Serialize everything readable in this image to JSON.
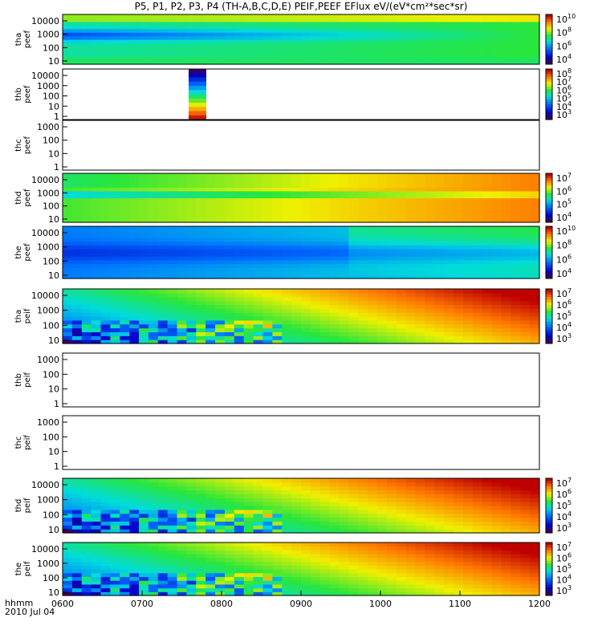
{
  "title": "P5, P1, P2, P3, P4 (TH-A,B,C,D,E) PEIF,PEEF EFlux eV/(eV*cm²*sec*sr)",
  "footer": {
    "time_label": "hhmm",
    "date_label": "2010 Jul 04"
  },
  "colors": {
    "frame": "#000000"
  },
  "chart_data": {
    "type": "heatmap",
    "x_ticks": [
      "0600",
      "0700",
      "0800",
      "0900",
      "1000",
      "1100",
      "1200"
    ],
    "x_range": [
      "0600",
      "1200"
    ],
    "y_scale": "log",
    "panels": [
      {
        "id": "tha-peef",
        "label": [
          "tha",
          "peef"
        ],
        "yticks": [
          "10",
          "100",
          "1000",
          "10000"
        ],
        "colorbar": [
          "10",
          "8",
          "6",
          "4"
        ],
        "cb_exp": true,
        "style": "peef-cool"
      },
      {
        "id": "thb-peef",
        "label": [
          "thb",
          "peef"
        ],
        "yticks": [
          "1",
          "10",
          "100",
          "1000",
          "10000"
        ],
        "colorbar": [
          "8",
          "7",
          "6",
          "5",
          "4",
          "3"
        ],
        "cb_exp": true,
        "style": "burst"
      },
      {
        "id": "thc-peef",
        "label": [
          "thc",
          "peef"
        ],
        "yticks": [
          "1",
          "10",
          "100",
          "1000"
        ],
        "colorbar": [],
        "cb_exp": false,
        "style": "empty"
      },
      {
        "id": "thd-peef",
        "label": [
          "thd",
          "peef"
        ],
        "yticks": [
          "10",
          "100",
          "1000",
          "10000"
        ],
        "colorbar": [
          "7",
          "6",
          "5",
          "4"
        ],
        "cb_exp": true,
        "style": "peef-warm"
      },
      {
        "id": "the-peef",
        "label": [
          "the",
          "peef"
        ],
        "yticks": [
          "10",
          "100",
          "1000",
          "10000"
        ],
        "colorbar": [
          "10",
          "8",
          "6",
          "4"
        ],
        "cb_exp": true,
        "style": "peef-cool2"
      },
      {
        "id": "tha-peif",
        "label": [
          "tha",
          "peif"
        ],
        "yticks": [
          "10",
          "100",
          "1000",
          "10000"
        ],
        "colorbar": [
          "7",
          "6",
          "5",
          "4",
          "3"
        ],
        "cb_exp": true,
        "style": "peif"
      },
      {
        "id": "thb-peif",
        "label": [
          "thb",
          "peif"
        ],
        "yticks": [
          "1",
          "10",
          "100",
          "1000"
        ],
        "colorbar": [],
        "cb_exp": false,
        "style": "empty"
      },
      {
        "id": "thc-peif",
        "label": [
          "thc",
          "peif"
        ],
        "yticks": [
          "1",
          "10",
          "100",
          "1000"
        ],
        "colorbar": [],
        "cb_exp": false,
        "style": "empty"
      },
      {
        "id": "thd-peif",
        "label": [
          "thd",
          "peif"
        ],
        "yticks": [
          "10",
          "100",
          "1000",
          "10000"
        ],
        "colorbar": [
          "7",
          "6",
          "5",
          "4",
          "3"
        ],
        "cb_exp": true,
        "style": "peif"
      },
      {
        "id": "the-peif",
        "label": [
          "the",
          "peif"
        ],
        "yticks": [
          "10",
          "100",
          "1000",
          "10000"
        ],
        "colorbar": [
          "7",
          "6",
          "5",
          "4",
          "3"
        ],
        "cb_exp": true,
        "style": "peif"
      }
    ]
  }
}
